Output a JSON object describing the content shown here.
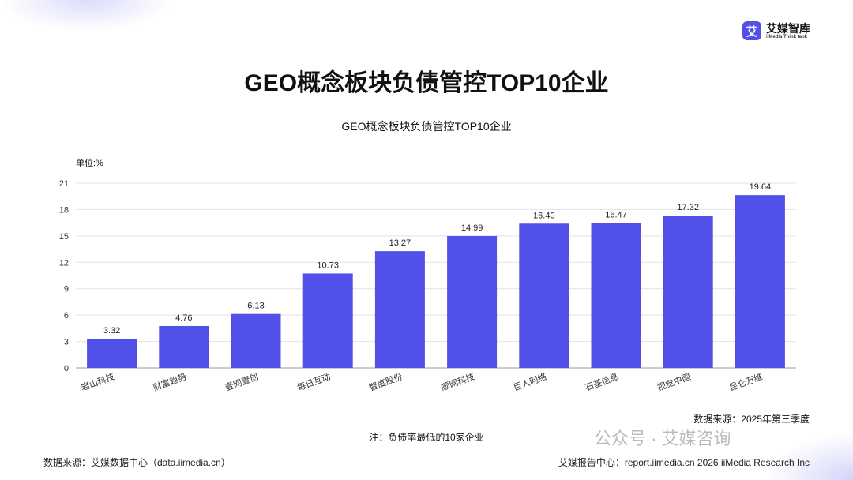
{
  "logo": {
    "mark": "艾",
    "name_cn": "艾媒智库",
    "name_en": "iiMedia Think tank"
  },
  "page_title": "GEO概念板块负债管控TOP10企业",
  "note": "注：负债率最低的10家企业",
  "data_source_period": "数据来源：2025年第三季度",
  "watermark": "公众号 · 艾媒咨询",
  "footer": {
    "left": "数据来源：艾媒数据中心（data.iimedia.cn）",
    "right": "艾媒报告中心：report.iimedia.cn  2026 iiMedia Research Inc"
  },
  "chart_data": {
    "type": "bar",
    "title": "GEO概念板块负债管控TOP10企业",
    "ylabel": "单位:%",
    "categories": [
      "岩山科技",
      "财富趋势",
      "壹网壹创",
      "每日互动",
      "智度股份",
      "顺网科技",
      "巨人网络",
      "石基信息",
      "视觉中国",
      "昆仑万维"
    ],
    "values": [
      3.32,
      4.76,
      6.13,
      10.73,
      13.27,
      14.99,
      16.4,
      16.47,
      17.32,
      19.64
    ],
    "value_labels": [
      "3.32",
      "4.76",
      "6.13",
      "10.73",
      "13.27",
      "14.99",
      "16.40",
      "16.47",
      "17.32",
      "19.64"
    ],
    "ylim": [
      0,
      21
    ],
    "yticks": [
      0,
      3,
      6,
      9,
      12,
      15,
      18,
      21
    ],
    "grid": true,
    "bar_color": "#5150e8"
  }
}
